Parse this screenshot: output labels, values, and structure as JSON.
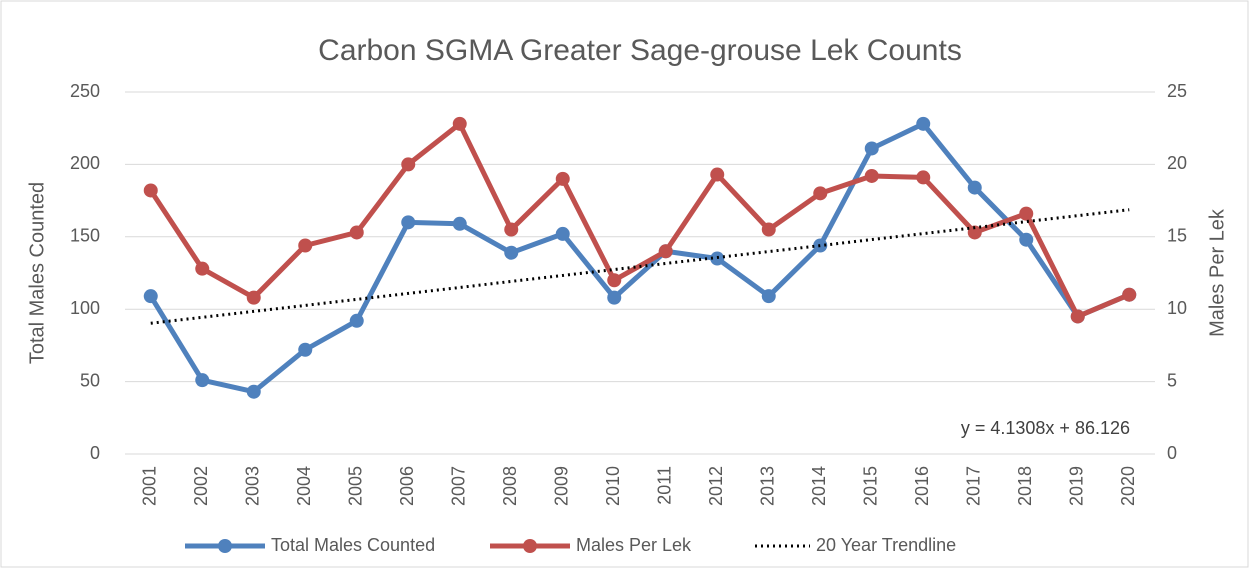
{
  "chart_data": {
    "type": "line",
    "title": "Carbon SGMA Greater Sage-grouse Lek Counts",
    "y_label": "Total Males Counted",
    "y2_label": "Males Per Lek",
    "annotation": "y = 4.1308x + 86.126",
    "categories": [
      "2001",
      "2002",
      "2003",
      "2004",
      "2005",
      "2006",
      "2007",
      "2008",
      "2009",
      "2010",
      "2011",
      "2012",
      "2013",
      "2014",
      "2015",
      "2016",
      "2017",
      "2018",
      "2019",
      "2020"
    ],
    "ylim": [
      0,
      250
    ],
    "yticks": [
      0,
      50,
      100,
      150,
      200,
      250
    ],
    "y2lim": [
      0,
      25
    ],
    "y2ticks": [
      0,
      5,
      10,
      15,
      20,
      25
    ],
    "grid": true,
    "legend": "bottom",
    "series": [
      {
        "name": "Total Males Counted",
        "color": "#4f81bd",
        "marker": true,
        "values": [
          109,
          51,
          43,
          72,
          92,
          160,
          159,
          139,
          152,
          108,
          140,
          135,
          109,
          144,
          211,
          228,
          184,
          148,
          95,
          110
        ]
      },
      {
        "name": "Males Per Lek",
        "color": "#c0504d",
        "marker": true,
        "axis": "y2",
        "values": [
          18.2,
          12.8,
          10.8,
          14.4,
          15.3,
          20.0,
          22.8,
          15.5,
          19.0,
          12.0,
          14.0,
          19.3,
          15.5,
          18.0,
          19.2,
          19.1,
          15.3,
          16.6,
          9.5,
          11.0
        ]
      },
      {
        "name": "20 Year Trendline",
        "color": "#000000",
        "marker": false,
        "style": "dotted",
        "values": [
          90.3,
          94.4,
          98.5,
          102.6,
          106.8,
          110.9,
          115.0,
          119.2,
          123.3,
          127.4,
          131.6,
          135.7,
          139.8,
          143.9,
          148.1,
          152.2,
          156.3,
          160.5,
          164.6,
          168.7
        ]
      }
    ]
  }
}
